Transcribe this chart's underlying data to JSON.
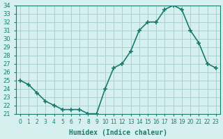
{
  "xlabel": "Humidex (Indice chaleur)",
  "ylabel": "",
  "x": [
    0,
    1,
    2,
    3,
    4,
    5,
    6,
    7,
    8,
    9,
    10,
    11,
    12,
    13,
    14,
    15,
    16,
    17,
    18,
    19,
    20,
    21,
    22,
    23
  ],
  "y": [
    25,
    24.5,
    23.5,
    22.5,
    22,
    21.5,
    21.5,
    21.5,
    21,
    21,
    24,
    26.5,
    27,
    28.5,
    31,
    32,
    32,
    33.5,
    34,
    33.5,
    31,
    29.5,
    27,
    26.5
  ],
  "line_color": "#1a7a6e",
  "bg_color": "#d6f0ef",
  "grid_color": "#aacfcf",
  "tick_label_color": "#1a7a6e",
  "ylim": [
    21,
    34
  ],
  "yticks": [
    21,
    22,
    23,
    24,
    25,
    26,
    27,
    28,
    29,
    30,
    31,
    32,
    33,
    34
  ],
  "marker": "+",
  "linewidth": 1.2,
  "markersize": 5,
  "markeredgewidth": 1.2
}
